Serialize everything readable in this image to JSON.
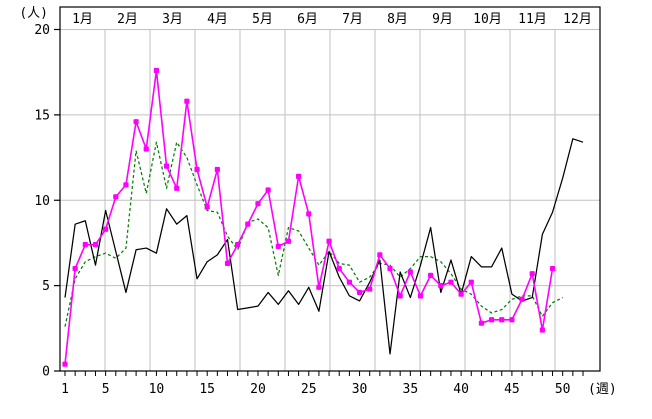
{
  "chart_data": {
    "type": "line",
    "title": "",
    "y_axis": {
      "unit_label": "(人)",
      "ticks": [
        0,
        5,
        10,
        15,
        20
      ],
      "range": [
        0,
        20
      ]
    },
    "x_axis": {
      "unit_label": "(週)",
      "labeled_ticks": [
        1,
        5,
        10,
        15,
        20,
        25,
        30,
        35,
        40,
        45,
        50
      ],
      "range": [
        1,
        52
      ],
      "tick_every": 1
    },
    "top_axis": {
      "month_labels": [
        "1月",
        "2月",
        "3月",
        "4月",
        "5月",
        "6月",
        "7月",
        "8月",
        "9月",
        "10月",
        "11月",
        "12月"
      ]
    },
    "grid": {
      "color": "#c0c0c0",
      "h_lines_at": [
        5,
        10,
        15,
        20
      ],
      "v_lines": "month-boundaries",
      "border_color": "#000000"
    },
    "legend": "none",
    "x": [
      1,
      2,
      3,
      4,
      5,
      6,
      7,
      8,
      9,
      10,
      11,
      12,
      13,
      14,
      15,
      16,
      17,
      18,
      19,
      20,
      21,
      22,
      23,
      24,
      25,
      26,
      27,
      28,
      29,
      30,
      31,
      32,
      33,
      34,
      35,
      36,
      37,
      38,
      39,
      40,
      41,
      42,
      43,
      44,
      45,
      46,
      47,
      48,
      49,
      50,
      51,
      52
    ],
    "series": [
      {
        "name": "green-dashed-line",
        "color": "#008000",
        "line_style": "dashed",
        "marker": "none",
        "values": [
          2.6,
          5.4,
          6.4,
          6.7,
          6.9,
          6.6,
          7.2,
          12.9,
          10.4,
          13.4,
          10.7,
          13.4,
          12.5,
          10.9,
          9.4,
          9.3,
          7.9,
          7.1,
          8.7,
          8.9,
          8.4,
          5.6,
          8.4,
          8.2,
          7.2,
          6.2,
          7.0,
          6.3,
          6.2,
          5.2,
          5.5,
          6.3,
          6.2,
          5.5,
          6.0,
          6.7,
          6.7,
          6.4,
          5.7,
          4.8,
          4.5,
          3.8,
          3.4,
          3.6,
          4.2,
          4.4,
          4.4,
          3.2,
          4.0,
          4.3,
          null,
          null
        ]
      },
      {
        "name": "black-solid-line",
        "color": "#000000",
        "line_style": "solid",
        "marker": "none",
        "values": [
          4.3,
          8.6,
          8.8,
          6.2,
          9.4,
          7.0,
          4.6,
          7.1,
          7.2,
          6.9,
          9.5,
          8.6,
          9.1,
          5.4,
          6.4,
          6.8,
          7.7,
          3.6,
          3.7,
          3.8,
          4.6,
          3.9,
          4.7,
          3.9,
          4.9,
          3.5,
          7.0,
          5.5,
          4.4,
          4.1,
          5.2,
          6.5,
          1.0,
          5.8,
          4.3,
          6.2,
          8.4,
          4.6,
          6.5,
          4.5,
          6.7,
          6.1,
          6.1,
          7.2,
          4.5,
          4.1,
          4.3,
          8.0,
          9.3,
          11.3,
          13.6,
          13.4
        ]
      },
      {
        "name": "magenta-marker-line",
        "color": "#ff00ff",
        "line_style": "solid",
        "marker": "square",
        "values": [
          0.4,
          6.0,
          7.4,
          7.4,
          8.3,
          10.2,
          10.9,
          14.6,
          13.0,
          17.6,
          12.0,
          10.7,
          15.8,
          11.8,
          9.6,
          11.8,
          6.3,
          7.4,
          8.6,
          9.8,
          10.6,
          7.3,
          7.6,
          11.4,
          9.2,
          4.9,
          7.6,
          6.0,
          5.2,
          4.6,
          4.8,
          6.8,
          6.0,
          4.4,
          5.8,
          4.4,
          5.6,
          5.0,
          5.2,
          4.5,
          5.2,
          2.8,
          3.0,
          3.0,
          3.0,
          4.2,
          5.7,
          2.4,
          6.0,
          null,
          null,
          null
        ]
      }
    ]
  }
}
